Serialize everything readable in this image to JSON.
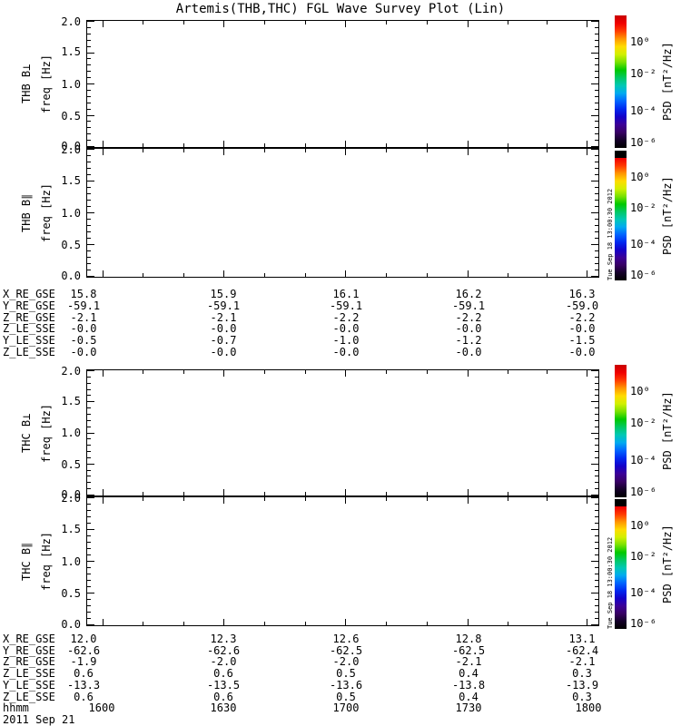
{
  "colors": {
    "foreground": "#000000",
    "background": "#ffffff",
    "colorbar_gradient": [
      "#c80000",
      "#f00000",
      "#ff3c00",
      "#ff9600",
      "#ffdc00",
      "#d2f000",
      "#78e100",
      "#00c800",
      "#00c864",
      "#00c8b4",
      "#00aaf0",
      "#0064ff",
      "#0028f0",
      "#1400c8",
      "#3c0096",
      "#380064",
      "#140028",
      "#000000"
    ]
  },
  "chart_data": {
    "type": "heatmap",
    "title": "Artemis(THB,THC) FGL Wave Survey Plot (Lin)",
    "note": "Four stacked wave-survey spectrogram panels (THB and THC, perpendicular and parallel B components); all four panels are blank white - no PSD spectral data is rendered.",
    "x_axis": {
      "label": "hhmm",
      "tick_labels": [
        "1600",
        "1630",
        "1700",
        "1730",
        "1800"
      ],
      "date": "2011 Sep 21"
    },
    "y_axis": {
      "label": "freq [Hz]",
      "range": [
        0.0,
        2.0
      ],
      "tick_labels": [
        "2.0",
        "1.5",
        "1.0",
        "0.5",
        "0.0"
      ]
    },
    "colorbar": {
      "label": "PSD [nT²/Hz]",
      "tick_labels": [
        "10⁰",
        "10⁻²",
        "10⁻⁴",
        "10⁻⁶"
      ],
      "timestamp": "Tue Sep 18 13:00:30 2012"
    },
    "panels": [
      {
        "slug": "thb-bperp",
        "ylabel": "THB B⊥",
        "ylim": [
          0.0,
          2.0
        ],
        "has_timestamp": false
      },
      {
        "slug": "thb-bpar",
        "ylabel": "THB B∥",
        "ylim": [
          0.0,
          2.0
        ],
        "has_timestamp": true
      },
      {
        "slug": "thc-bperp",
        "ylabel": "THC B⊥",
        "ylim": [
          0.0,
          2.0
        ],
        "has_timestamp": false
      },
      {
        "slug": "thc-bpar",
        "ylabel": "THC B∥",
        "ylim": [
          0.0,
          2.0
        ],
        "has_timestamp": true
      }
    ],
    "label_blocks": [
      {
        "rows": [
          {
            "label": "X_RE_GSE",
            "values": [
              "15.8",
              "15.9",
              "16.1",
              "16.2",
              "16.3"
            ]
          },
          {
            "label": "Y_RE_GSE",
            "values": [
              "-59.1",
              "-59.1",
              "-59.1",
              "-59.1",
              "-59.0"
            ]
          },
          {
            "label": "Z_RE_GSE",
            "values": [
              "-2.1",
              "-2.1",
              "-2.2",
              "-2.2",
              "-2.2"
            ]
          },
          {
            "label": "Z_LE_SSE",
            "values": [
              "-0.0",
              "-0.0",
              "-0.0",
              "-0.0",
              "-0.0"
            ]
          },
          {
            "label": "Y_LE_SSE",
            "values": [
              "-0.5",
              "-0.7",
              "-1.0",
              "-1.2",
              "-1.5"
            ]
          },
          {
            "label": "Z_LE_SSE",
            "values": [
              "-0.0",
              "-0.0",
              "-0.0",
              "-0.0",
              "-0.0"
            ]
          }
        ]
      },
      {
        "rows": [
          {
            "label": "X_RE_GSE",
            "values": [
              "12.0",
              "12.3",
              "12.6",
              "12.8",
              "13.1"
            ]
          },
          {
            "label": "Y_RE_GSE",
            "values": [
              "-62.6",
              "-62.6",
              "-62.5",
              "-62.5",
              "-62.4"
            ]
          },
          {
            "label": "Z_RE_GSE",
            "values": [
              "-1.9",
              "-2.0",
              "-2.0",
              "-2.1",
              "-2.1"
            ]
          },
          {
            "label": "Z_LE_SSE",
            "values": [
              "0.6",
              "0.6",
              "0.5",
              "0.4",
              "0.3"
            ]
          },
          {
            "label": "Y_LE_SSE",
            "values": [
              "-13.3",
              "-13.5",
              "-13.6",
              "-13.8",
              "-13.9"
            ]
          },
          {
            "label": "Z_LE_SSE",
            "values": [
              "0.6",
              "0.6",
              "0.5",
              "0.4",
              "0.3"
            ]
          }
        ]
      }
    ]
  }
}
